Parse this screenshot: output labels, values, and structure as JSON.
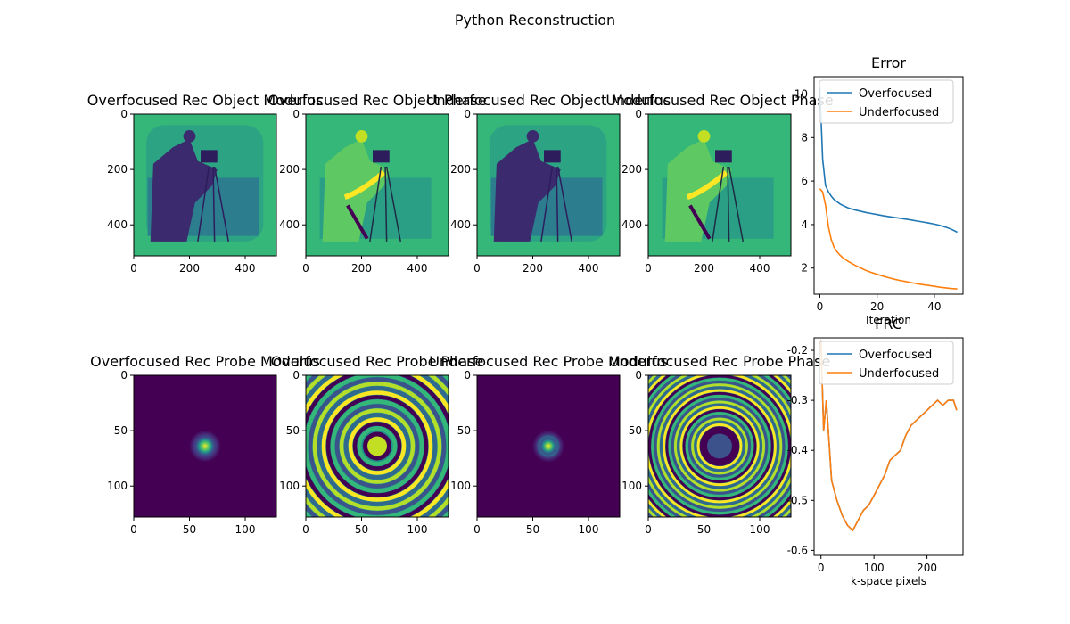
{
  "suptitle": "Python Reconstruction",
  "colors": {
    "overfocused": "#1f77b4",
    "underfocused": "#ff7f0e",
    "viridis_dark": "#440154",
    "viridis_mid": "#21918c",
    "viridis_bright": "#fde725"
  },
  "chart_data": [
    {
      "type": "heatmap",
      "title": "Overfocused Rec Object Modulus",
      "image_kind": "object_modulus",
      "xlim": [
        0,
        512
      ],
      "ylim": [
        512,
        0
      ],
      "xticks": [
        0,
        200,
        400
      ],
      "yticks": [
        0,
        200,
        400
      ],
      "colormap": "viridis"
    },
    {
      "type": "heatmap",
      "title": "Overfocused Rec Object Phase",
      "image_kind": "object_phase",
      "xlim": [
        0,
        512
      ],
      "ylim": [
        512,
        0
      ],
      "xticks": [
        0,
        200,
        400
      ],
      "yticks": [
        0,
        200,
        400
      ],
      "colormap": "viridis"
    },
    {
      "type": "heatmap",
      "title": "Underfocused Rec Object Modulus",
      "image_kind": "object_modulus",
      "xlim": [
        0,
        512
      ],
      "ylim": [
        512,
        0
      ],
      "xticks": [
        0,
        200,
        400
      ],
      "yticks": [
        0,
        200,
        400
      ],
      "colormap": "viridis"
    },
    {
      "type": "heatmap",
      "title": "Underfocused Rec Object Phase",
      "image_kind": "object_phase",
      "xlim": [
        0,
        512
      ],
      "ylim": [
        512,
        0
      ],
      "xticks": [
        0,
        200,
        400
      ],
      "yticks": [
        0,
        200,
        400
      ],
      "colormap": "viridis"
    },
    {
      "type": "line",
      "title": "Error",
      "xlabel": "Iteration",
      "ylabel": "",
      "xlim": [
        -2,
        50
      ],
      "ylim": [
        0.8,
        10.8
      ],
      "xticks": [
        0,
        20,
        40
      ],
      "yticks": [
        2,
        4,
        6,
        8,
        10
      ],
      "legend": "top-right",
      "grid": false,
      "series": [
        {
          "name": "Overfocused",
          "color": "#1f77b4",
          "x": [
            0,
            1,
            2,
            3,
            4,
            5,
            6,
            7,
            8,
            9,
            10,
            12,
            14,
            16,
            18,
            20,
            22,
            24,
            26,
            28,
            30,
            32,
            34,
            36,
            38,
            40,
            42,
            44,
            46,
            48
          ],
          "y": [
            10.3,
            7.0,
            5.8,
            5.5,
            5.3,
            5.15,
            5.05,
            4.95,
            4.88,
            4.82,
            4.76,
            4.68,
            4.62,
            4.56,
            4.51,
            4.46,
            4.41,
            4.37,
            4.33,
            4.29,
            4.25,
            4.21,
            4.16,
            4.12,
            4.07,
            4.02,
            3.96,
            3.88,
            3.78,
            3.65
          ]
        },
        {
          "name": "Underfocused",
          "color": "#ff7f0e",
          "x": [
            0,
            1,
            2,
            3,
            4,
            5,
            6,
            7,
            8,
            9,
            10,
            12,
            14,
            16,
            18,
            20,
            22,
            24,
            26,
            28,
            30,
            32,
            34,
            36,
            38,
            40,
            42,
            44,
            46,
            48
          ],
          "y": [
            5.65,
            5.5,
            4.9,
            3.9,
            3.3,
            2.95,
            2.75,
            2.6,
            2.48,
            2.38,
            2.3,
            2.15,
            2.02,
            1.9,
            1.8,
            1.71,
            1.63,
            1.56,
            1.49,
            1.43,
            1.38,
            1.33,
            1.28,
            1.24,
            1.2,
            1.16,
            1.12,
            1.09,
            1.06,
            1.04
          ]
        }
      ]
    },
    {
      "type": "heatmap",
      "title": "Overfocused Rec Probe Modulus",
      "image_kind": "probe_modulus",
      "xlim": [
        0,
        128
      ],
      "ylim": [
        128,
        0
      ],
      "xticks": [
        0,
        50,
        100
      ],
      "yticks": [
        0,
        50,
        100
      ],
      "colormap": "viridis"
    },
    {
      "type": "heatmap",
      "title": "Overfocused Rec Probe Phase",
      "image_kind": "probe_phase",
      "xlim": [
        0,
        128
      ],
      "ylim": [
        128,
        0
      ],
      "xticks": [
        0,
        50,
        100
      ],
      "yticks": [
        0,
        50,
        100
      ],
      "colormap": "viridis"
    },
    {
      "type": "heatmap",
      "title": "Underfocused Rec Probe Modulus",
      "image_kind": "probe_modulus",
      "xlim": [
        0,
        128
      ],
      "ylim": [
        128,
        0
      ],
      "xticks": [
        0,
        50,
        100
      ],
      "yticks": [
        0,
        50,
        100
      ],
      "colormap": "viridis"
    },
    {
      "type": "heatmap",
      "title": "Underfocused Rec Probe Phase",
      "image_kind": "probe_phase",
      "xlim": [
        0,
        128
      ],
      "ylim": [
        128,
        0
      ],
      "xticks": [
        0,
        50,
        100
      ],
      "yticks": [
        0,
        50,
        100
      ],
      "colormap": "viridis"
    },
    {
      "type": "line",
      "title": "FRC",
      "xlabel": "k-space pixels",
      "ylabel": "",
      "xlim": [
        -13,
        268
      ],
      "ylim": [
        -0.61,
        -0.175
      ],
      "xticks": [
        0,
        100,
        200
      ],
      "yticks": [
        -0.6,
        -0.5,
        -0.4,
        -0.3,
        -0.2
      ],
      "legend": "top-right",
      "grid": false,
      "series": [
        {
          "name": "Overfocused",
          "color": "#1f77b4",
          "x": [
            0,
            5,
            10,
            20,
            30,
            40,
            50,
            60,
            70,
            80,
            90,
            100,
            110,
            120,
            130,
            140,
            150,
            160,
            170,
            180,
            190,
            200,
            210,
            220,
            230,
            240,
            250,
            256
          ],
          "y": [
            -0.18,
            -0.36,
            -0.3,
            -0.46,
            -0.5,
            -0.53,
            -0.55,
            -0.56,
            -0.54,
            -0.52,
            -0.51,
            -0.49,
            -0.47,
            -0.45,
            -0.42,
            -0.41,
            -0.4,
            -0.37,
            -0.35,
            -0.34,
            -0.33,
            -0.32,
            -0.31,
            -0.3,
            -0.31,
            -0.3,
            -0.3,
            -0.32
          ]
        },
        {
          "name": "Underfocused",
          "color": "#ff7f0e",
          "x": [
            0,
            5,
            10,
            20,
            30,
            40,
            50,
            60,
            70,
            80,
            90,
            100,
            110,
            120,
            130,
            140,
            150,
            160,
            170,
            180,
            190,
            200,
            210,
            220,
            230,
            240,
            250,
            256
          ],
          "y": [
            -0.18,
            -0.36,
            -0.3,
            -0.46,
            -0.5,
            -0.53,
            -0.55,
            -0.56,
            -0.54,
            -0.52,
            -0.51,
            -0.49,
            -0.47,
            -0.45,
            -0.42,
            -0.41,
            -0.4,
            -0.37,
            -0.35,
            -0.34,
            -0.33,
            -0.32,
            -0.31,
            -0.3,
            -0.31,
            -0.3,
            -0.3,
            -0.32
          ]
        }
      ]
    }
  ]
}
